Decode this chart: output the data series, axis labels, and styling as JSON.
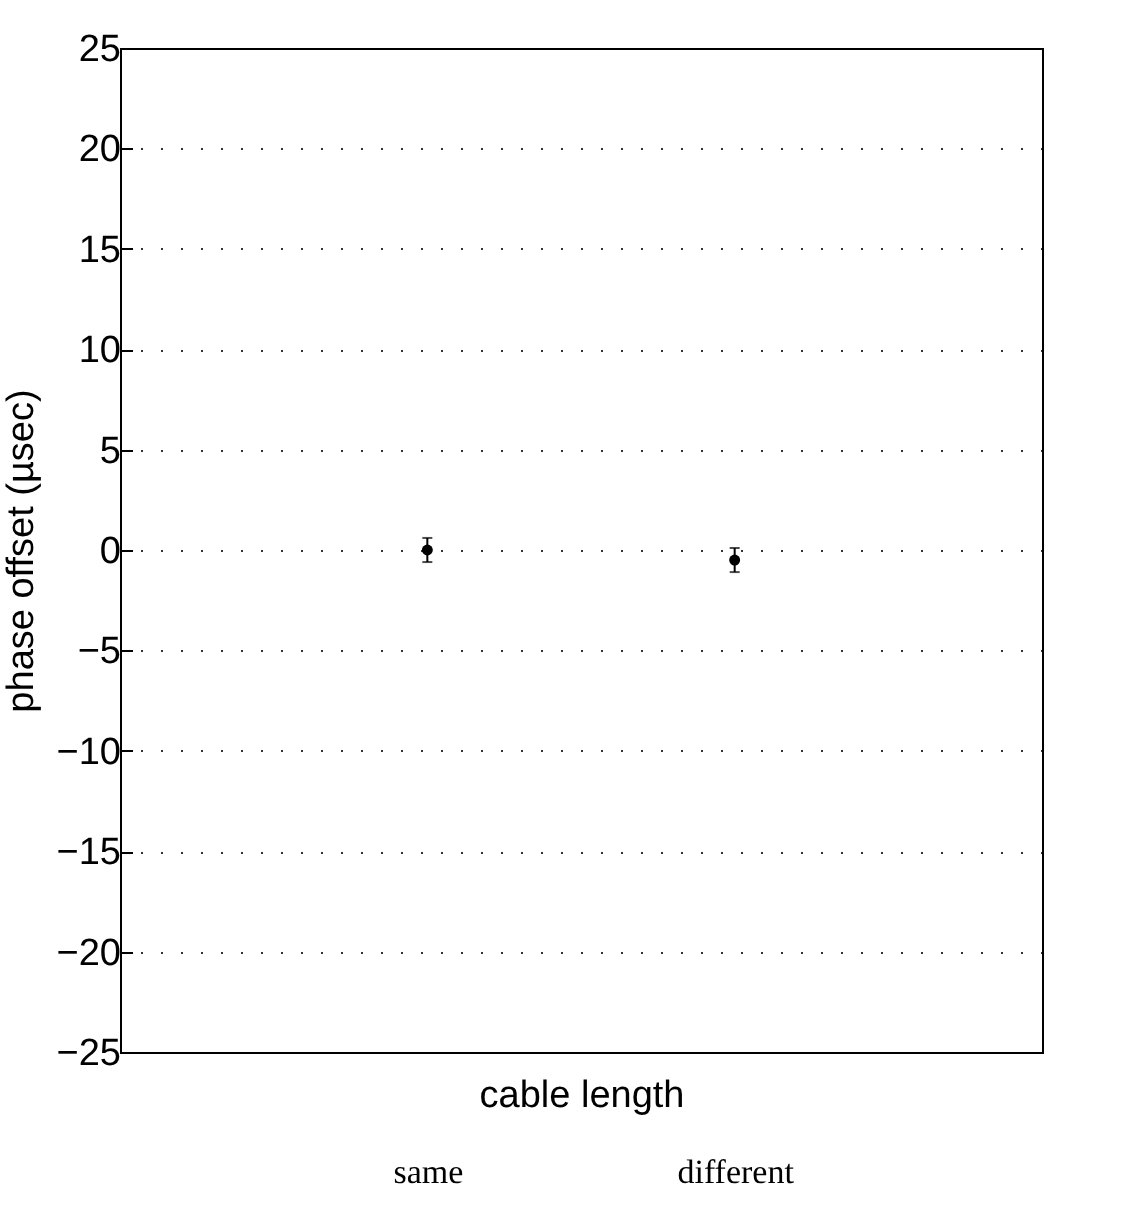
{
  "chart_data": {
    "type": "scatter",
    "xlabel": "cable length",
    "ylabel": "phase offset (µsec)",
    "categories": [
      "same",
      "different"
    ],
    "series": [
      {
        "color": "#000000",
        "values": [
          0,
          -0.5
        ],
        "errors": [
          0.6,
          0.6
        ]
      }
    ],
    "ylim": [
      -25,
      25
    ],
    "yticks": [
      -25,
      -20,
      -15,
      -10,
      -5,
      0,
      5,
      10,
      15,
      20,
      25
    ],
    "grid": "y",
    "marker": "circle"
  }
}
